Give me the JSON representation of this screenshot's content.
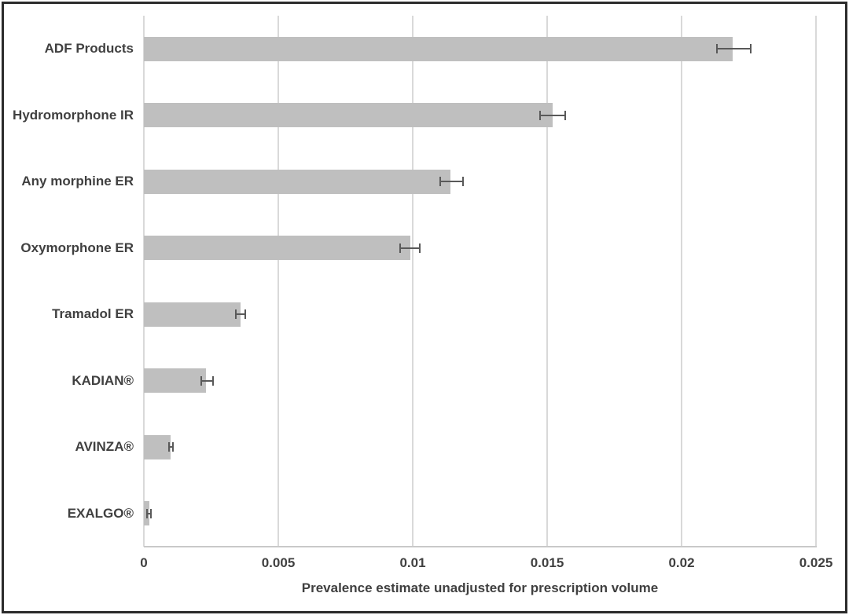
{
  "chart_data": {
    "type": "bar",
    "orientation": "horizontal",
    "title": "",
    "xlabel": "Prevalence estimate unadjusted for prescription volume",
    "ylabel": "",
    "categories": [
      "ADF Products",
      "Hydromorphone IR",
      "Any morphine ER",
      "Oxymorphone ER",
      "Tramadol ER",
      "KADIAN®",
      "AVINZA®",
      "EXALGO®"
    ],
    "values": [
      0.0219,
      0.0152,
      0.0114,
      0.0099,
      0.0036,
      0.0023,
      0.001,
      0.0002
    ],
    "error_low": [
      0.0213,
      0.0147,
      0.011,
      0.0095,
      0.0034,
      0.0021,
      0.0009,
      0.0001
    ],
    "error_high": [
      0.0226,
      0.0157,
      0.0119,
      0.0103,
      0.0038,
      0.0026,
      0.0011,
      0.0003
    ],
    "xlim": [
      0,
      0.025
    ],
    "x_ticks": [
      0,
      0.005,
      0.01,
      0.015,
      0.02,
      0.025
    ],
    "x_tick_labels": [
      "0",
      "0.005",
      "0.01",
      "0.015",
      "0.02",
      "0.025"
    ],
    "grid": true,
    "legend": false,
    "colors": {
      "bar": "#bfbfbf",
      "error_bar": "#595959",
      "gridline": "#d9d9d9",
      "axis_line": "#c9c9c9",
      "text": "#404040",
      "frame": "#2b2b2b",
      "background": "#ffffff"
    }
  }
}
